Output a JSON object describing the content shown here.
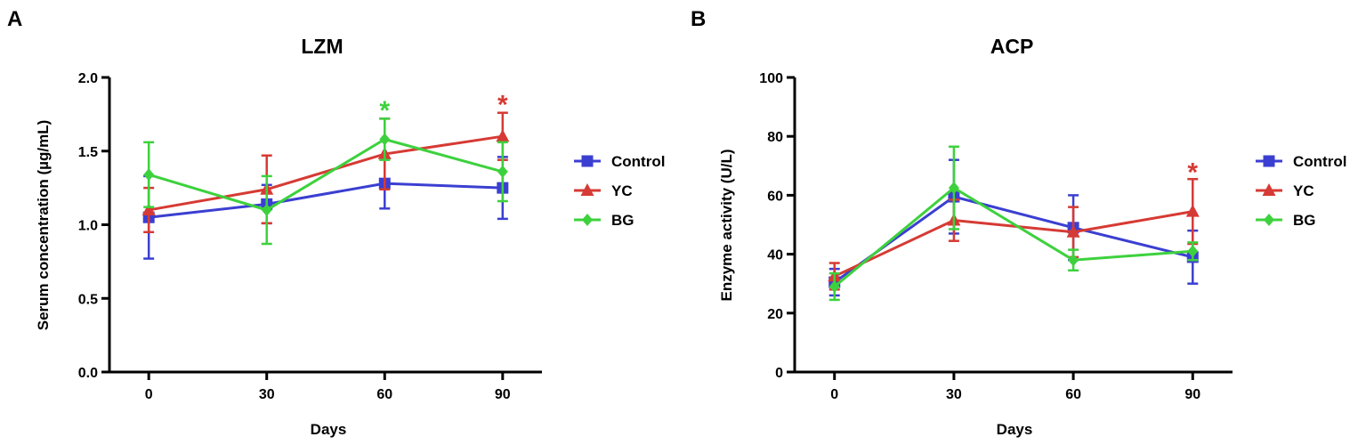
{
  "chart_data": [
    {
      "panel_label": "A",
      "type": "line",
      "title": "LZM",
      "xlabel": "Days",
      "ylabel": "Serum concentration (µg/mL)",
      "x": [
        0,
        30,
        60,
        90
      ],
      "x_tick_labels": [
        "0",
        "30",
        "60",
        "90"
      ],
      "xlim": [
        -10,
        100
      ],
      "ylim": [
        0,
        2.0
      ],
      "y_ticks": [
        0.0,
        0.5,
        1.0,
        1.5,
        2.0
      ],
      "y_tick_labels": [
        "0.0",
        "0.5",
        "1.0",
        "1.5",
        "2.0"
      ],
      "grid": false,
      "legend_position": "right",
      "series": [
        {
          "name": "Control",
          "marker": "square",
          "color": "#3b3fd1",
          "values": [
            1.05,
            1.14,
            1.28,
            1.25
          ],
          "errors": [
            0.28,
            0.13,
            0.17,
            0.21
          ]
        },
        {
          "name": "YC",
          "marker": "triangle",
          "color": "#d63a34",
          "values": [
            1.1,
            1.24,
            1.48,
            1.6
          ],
          "errors": [
            0.15,
            0.23,
            0.24,
            0.16
          ]
        },
        {
          "name": "BG",
          "marker": "diamond",
          "color": "#3dd13d",
          "values": [
            1.34,
            1.1,
            1.58,
            1.36
          ],
          "errors": [
            0.22,
            0.23,
            0.14,
            0.2
          ]
        }
      ],
      "annotations": [
        {
          "x": 60,
          "y": 1.8,
          "text": "*",
          "color": "#3dd13d"
        },
        {
          "x": 90,
          "y": 1.84,
          "text": "*",
          "color": "#d63a34"
        }
      ]
    },
    {
      "panel_label": "B",
      "type": "line",
      "title": "ACP",
      "xlabel": "Days",
      "ylabel": "Enzyme activity (U/L)",
      "x": [
        0,
        30,
        60,
        90
      ],
      "x_tick_labels": [
        "0",
        "30",
        "60",
        "90"
      ],
      "xlim": [
        -10,
        100
      ],
      "ylim": [
        0,
        100
      ],
      "y_ticks": [
        0,
        20,
        40,
        60,
        80,
        100
      ],
      "y_tick_labels": [
        "0",
        "20",
        "40",
        "60",
        "80",
        "100"
      ],
      "grid": false,
      "legend_position": "right",
      "series": [
        {
          "name": "Control",
          "marker": "square",
          "color": "#3b3fd1",
          "values": [
            30.5,
            59.5,
            49.0,
            39.0
          ],
          "errors": [
            4.5,
            12.5,
            11.0,
            9.0
          ]
        },
        {
          "name": "YC",
          "marker": "triangle",
          "color": "#d63a34",
          "values": [
            32.5,
            51.5,
            47.5,
            54.5
          ],
          "errors": [
            4.5,
            7.0,
            8.5,
            11.0
          ]
        },
        {
          "name": "BG",
          "marker": "diamond",
          "color": "#3dd13d",
          "values": [
            29.0,
            62.5,
            38.0,
            41.0
          ],
          "errors": [
            4.5,
            14.0,
            3.5,
            3.0
          ]
        }
      ],
      "annotations": [
        {
          "x": 90,
          "y": 69,
          "text": "*",
          "color": "#d63a34"
        }
      ]
    }
  ]
}
